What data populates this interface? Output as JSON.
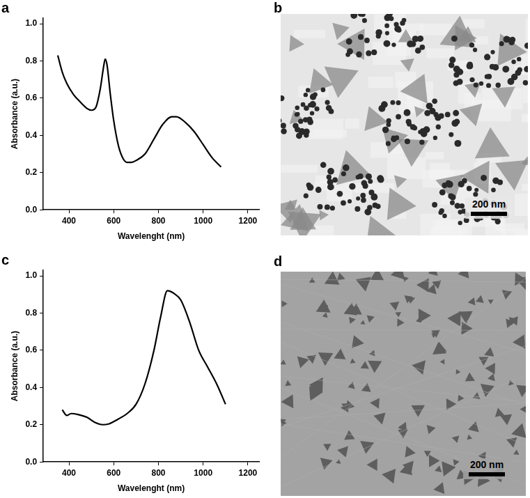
{
  "chart_data": [
    {
      "panel": "a",
      "type": "line",
      "x_label": "Wavelenght (nm)",
      "y_label": "Absorbance (a.u.)",
      "x": [
        350,
        370,
        390,
        420,
        450,
        480,
        500,
        520,
        540,
        555,
        562,
        570,
        585,
        600,
        620,
        640,
        660,
        680,
        700,
        740,
        780,
        820,
        860,
        880,
        920,
        960,
        1000,
        1040,
        1080
      ],
      "values": [
        0.83,
        0.74,
        0.68,
        0.62,
        0.58,
        0.545,
        0.535,
        0.55,
        0.65,
        0.77,
        0.81,
        0.78,
        0.62,
        0.48,
        0.35,
        0.28,
        0.255,
        0.255,
        0.265,
        0.3,
        0.38,
        0.46,
        0.5,
        0.5,
        0.47,
        0.42,
        0.35,
        0.28,
        0.23
      ],
      "color": "#000000",
      "marker": "none",
      "grid": false,
      "xlim": [
        285,
        1250
      ],
      "xticks": [
        400,
        600,
        800,
        1000,
        1200
      ],
      "ylim": [
        0,
        1.03
      ],
      "yticks": [
        {
          "value": 0,
          "label": "0.0"
        },
        0.2,
        0.4,
        0.6,
        0.8,
        {
          "value": 1,
          "label": "1.0"
        }
      ]
    },
    {
      "panel": "c",
      "type": "line",
      "x_label": "Wavelenght (nm)",
      "y_label": "Absorbance (a.u.)",
      "x": [
        370,
        390,
        410,
        440,
        480,
        520,
        550,
        580,
        620,
        660,
        700,
        740,
        780,
        810,
        840,
        870,
        900,
        940,
        980,
        1020,
        1060,
        1100
      ],
      "values": [
        0.28,
        0.25,
        0.26,
        0.255,
        0.24,
        0.21,
        0.2,
        0.205,
        0.23,
        0.26,
        0.31,
        0.42,
        0.6,
        0.78,
        0.92,
        0.905,
        0.87,
        0.75,
        0.6,
        0.51,
        0.42,
        0.31
      ],
      "color": "#000000",
      "marker": "none",
      "grid": false,
      "xlim": [
        285,
        1250
      ],
      "xticks": [
        400,
        600,
        800,
        1000,
        1200
      ],
      "ylim": [
        0,
        1.03
      ],
      "yticks": [
        {
          "value": 0,
          "label": "0.0"
        },
        0.2,
        0.4,
        0.6,
        0.8,
        {
          "value": 1,
          "label": "1.0"
        }
      ]
    }
  ],
  "images": [
    {
      "panel": "b",
      "scale_bar": "200 nm"
    },
    {
      "panel": "d",
      "scale_bar": "200 nm"
    }
  ]
}
